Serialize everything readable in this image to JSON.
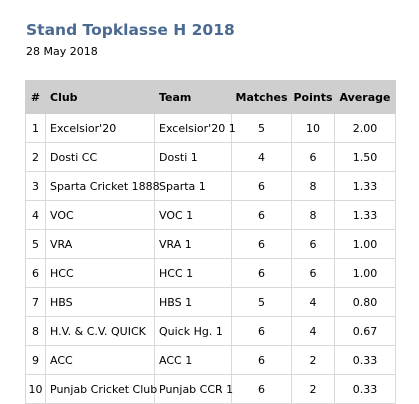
{
  "title": "Stand Topklasse H 2018",
  "date": "28 May 2018",
  "table": {
    "headers": {
      "num": "#",
      "club": "Club",
      "team": "Team",
      "matches": "Matches",
      "points": "Points",
      "average": "Average"
    },
    "rows": [
      {
        "num": "1",
        "club": "Excelsior'20",
        "team": "Excelsior'20 1",
        "matches": "5",
        "points": "10",
        "average": "2.00"
      },
      {
        "num": "2",
        "club": "Dosti CC",
        "team": "Dosti 1",
        "matches": "4",
        "points": "6",
        "average": "1.50"
      },
      {
        "num": "3",
        "club": "Sparta Cricket 1888",
        "team": "Sparta 1",
        "matches": "6",
        "points": "8",
        "average": "1.33"
      },
      {
        "num": "4",
        "club": "VOC",
        "team": "VOC 1",
        "matches": "6",
        "points": "8",
        "average": "1.33"
      },
      {
        "num": "5",
        "club": "VRA",
        "team": "VRA 1",
        "matches": "6",
        "points": "6",
        "average": "1.00"
      },
      {
        "num": "6",
        "club": "HCC",
        "team": "HCC 1",
        "matches": "6",
        "points": "6",
        "average": "1.00"
      },
      {
        "num": "7",
        "club": "HBS",
        "team": "HBS 1",
        "matches": "5",
        "points": "4",
        "average": "0.80"
      },
      {
        "num": "8",
        "club": "H.V. & C.V. QUICK",
        "team": "Quick Hg. 1",
        "matches": "6",
        "points": "4",
        "average": "0.67"
      },
      {
        "num": "9",
        "club": "ACC",
        "team": "ACC 1",
        "matches": "6",
        "points": "2",
        "average": "0.33"
      },
      {
        "num": "10",
        "club": "Punjab Cricket Club",
        "team": "Punjab CCR 1",
        "matches": "6",
        "points": "2",
        "average": "0.33"
      }
    ]
  }
}
